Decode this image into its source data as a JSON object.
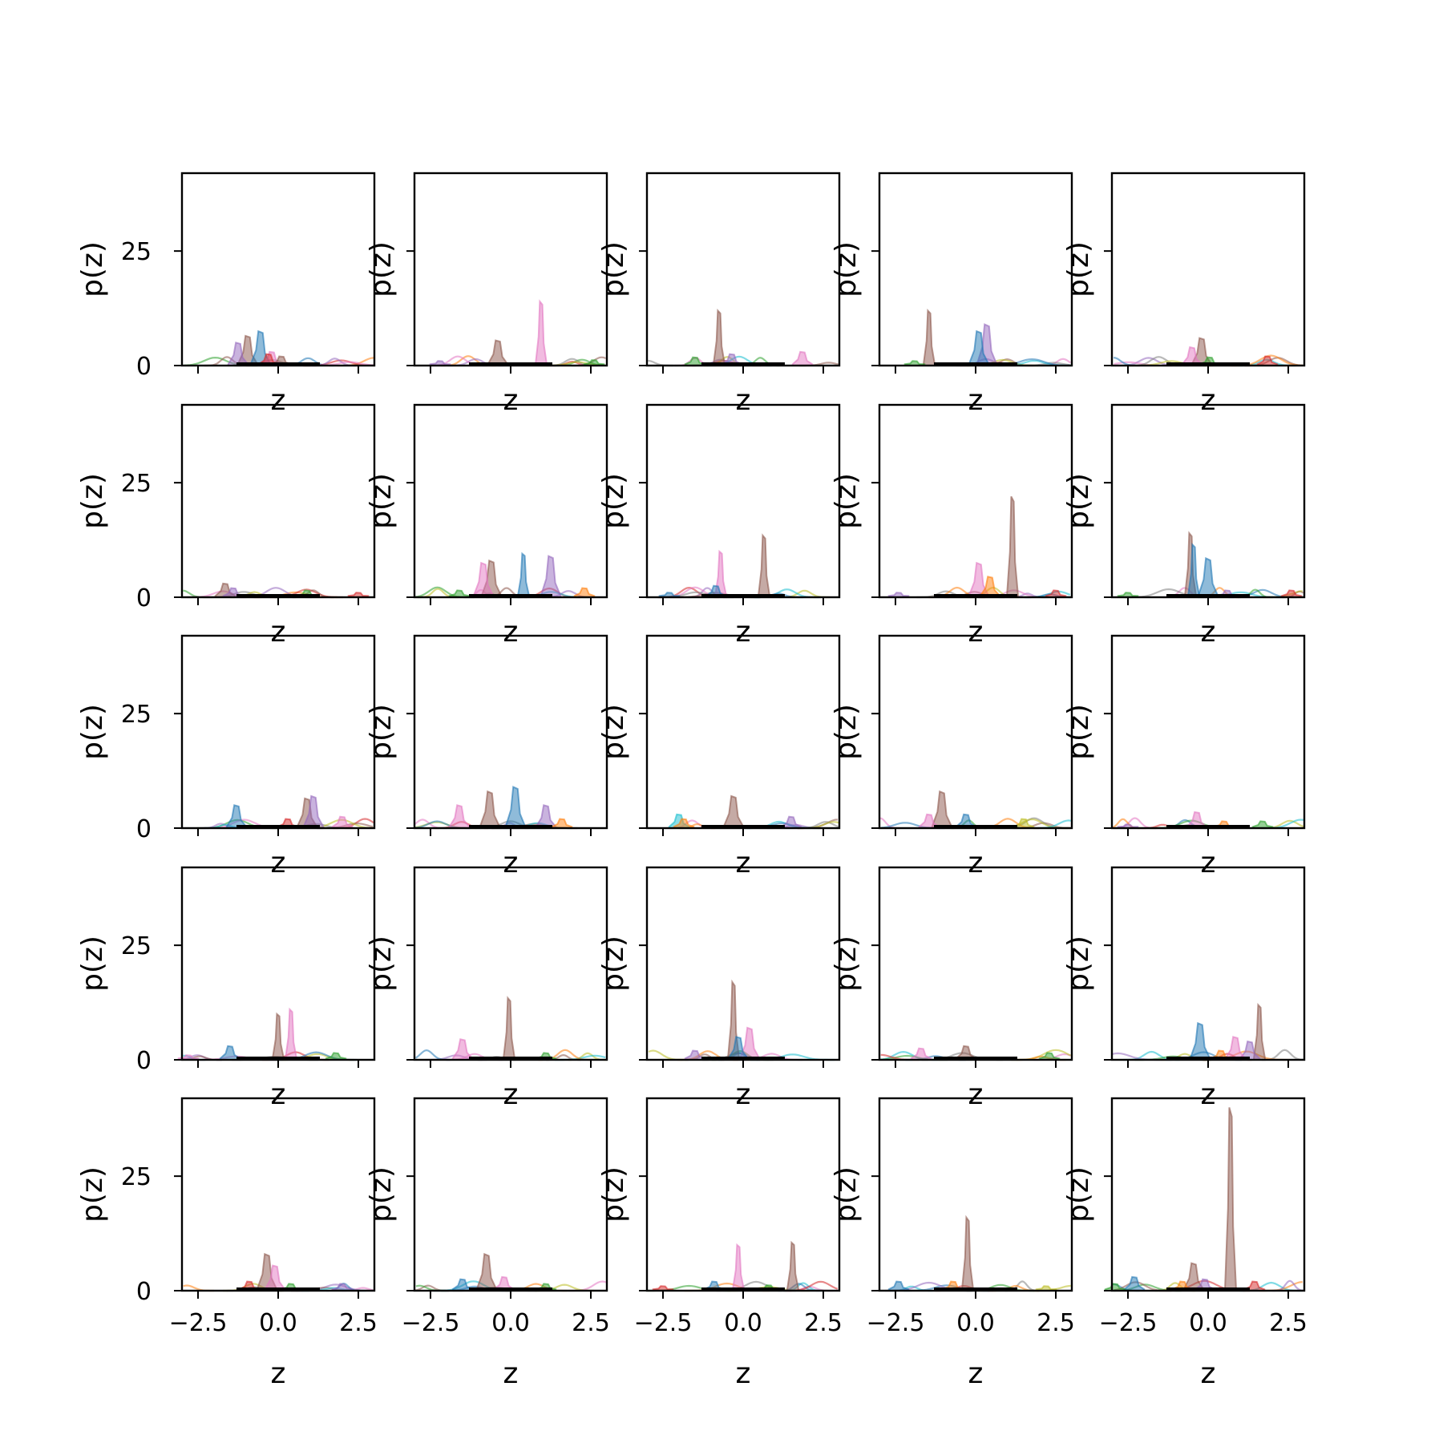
{
  "figure": {
    "grid_rows": 5,
    "grid_cols": 5
  },
  "chart_data": {
    "type": "area",
    "xlabel": "z",
    "ylabel": "p(z)",
    "xlim": [
      -3.0,
      3.0
    ],
    "ylim": [
      0,
      42
    ],
    "xticks": [
      -2.5,
      0.0,
      2.5
    ],
    "xtick_labels": [
      "−2.5",
      "0.0",
      "2.5"
    ],
    "yticks": [
      0,
      25
    ],
    "ytick_labels": [
      "0",
      "25"
    ],
    "grid": false,
    "legend": "none",
    "palette": [
      "#1f77b4",
      "#ff7f0e",
      "#2ca02c",
      "#d62728",
      "#9467bd",
      "#8c564b",
      "#e377c2",
      "#7f7f7f",
      "#bcbd22",
      "#17becf"
    ],
    "panels": [
      [
        {
          "peaks": [
            {
              "c": 5,
              "x": -0.95,
              "h": 6.5
            },
            {
              "c": 0,
              "x": -0.55,
              "h": 7.5
            },
            {
              "c": 4,
              "x": -1.25,
              "h": 5.0
            },
            {
              "c": 6,
              "x": -0.2,
              "h": 3.0
            },
            {
              "c": 3,
              "x": -0.3,
              "h": 2.5
            },
            {
              "c": 5,
              "x": 0.1,
              "h": 2.0
            }
          ]
        },
        {
          "peaks": [
            {
              "c": 6,
              "x": 0.95,
              "h": 14.0
            },
            {
              "c": 5,
              "x": -0.4,
              "h": 5.5
            },
            {
              "c": 2,
              "x": 2.6,
              "h": 1.2
            },
            {
              "c": 4,
              "x": -2.2,
              "h": 1.0
            }
          ]
        },
        {
          "peaks": [
            {
              "c": 5,
              "x": -0.75,
              "h": 12.0
            },
            {
              "c": 6,
              "x": 1.85,
              "h": 3.0
            },
            {
              "c": 2,
              "x": -1.5,
              "h": 1.8
            },
            {
              "c": 4,
              "x": -0.35,
              "h": 2.5
            }
          ]
        },
        {
          "peaks": [
            {
              "c": 5,
              "x": -1.45,
              "h": 12.0
            },
            {
              "c": 4,
              "x": 0.35,
              "h": 9.0
            },
            {
              "c": 0,
              "x": 0.1,
              "h": 7.5
            },
            {
              "c": 2,
              "x": -1.9,
              "h": 1.0
            }
          ]
        },
        {
          "peaks": [
            {
              "c": 5,
              "x": -0.2,
              "h": 6.0
            },
            {
              "c": 6,
              "x": -0.5,
              "h": 4.0
            },
            {
              "c": 3,
              "x": 1.85,
              "h": 2.0
            },
            {
              "c": 2,
              "x": 0.05,
              "h": 1.8
            }
          ]
        }
      ],
      [
        {
          "peaks": [
            {
              "c": 5,
              "x": -1.65,
              "h": 3.0
            },
            {
              "c": 4,
              "x": -1.4,
              "h": 2.0
            },
            {
              "c": 2,
              "x": 0.9,
              "h": 1.5
            },
            {
              "c": 3,
              "x": 2.5,
              "h": 1.0
            }
          ]
        },
        {
          "peaks": [
            {
              "c": 0,
              "x": 0.4,
              "h": 9.5
            },
            {
              "c": 4,
              "x": 1.25,
              "h": 9.0
            },
            {
              "c": 5,
              "x": -0.6,
              "h": 8.0
            },
            {
              "c": 6,
              "x": -0.85,
              "h": 7.5
            },
            {
              "c": 2,
              "x": -1.6,
              "h": 1.5
            },
            {
              "c": 1,
              "x": 2.3,
              "h": 2.0
            }
          ]
        },
        {
          "peaks": [
            {
              "c": 5,
              "x": 0.65,
              "h": 13.5
            },
            {
              "c": 6,
              "x": -0.7,
              "h": 10.0
            },
            {
              "c": 0,
              "x": -0.85,
              "h": 2.5
            },
            {
              "c": 0,
              "x": -2.3,
              "h": 1.0
            }
          ]
        },
        {
          "peaks": [
            {
              "c": 5,
              "x": 1.15,
              "h": 22.0
            },
            {
              "c": 6,
              "x": 0.1,
              "h": 7.5
            },
            {
              "c": 1,
              "x": 0.45,
              "h": 4.5
            },
            {
              "c": 3,
              "x": 2.5,
              "h": 1.5
            },
            {
              "c": 4,
              "x": -2.4,
              "h": 1.0
            }
          ]
        },
        {
          "peaks": [
            {
              "c": 5,
              "x": -0.55,
              "h": 14.0
            },
            {
              "c": 0,
              "x": -0.45,
              "h": 11.5
            },
            {
              "c": 0,
              "x": 0.0,
              "h": 8.5
            },
            {
              "c": 3,
              "x": 2.6,
              "h": 1.5
            },
            {
              "c": 2,
              "x": -2.5,
              "h": 1.0
            },
            {
              "c": 4,
              "x": 0.6,
              "h": 1.5
            }
          ]
        }
      ],
      [
        {
          "peaks": [
            {
              "c": 0,
              "x": -1.3,
              "h": 5.0
            },
            {
              "c": 5,
              "x": 0.9,
              "h": 6.5
            },
            {
              "c": 4,
              "x": 1.1,
              "h": 7.0
            },
            {
              "c": 6,
              "x": 2.0,
              "h": 2.5
            },
            {
              "c": 3,
              "x": 0.3,
              "h": 2.0
            }
          ]
        },
        {
          "peaks": [
            {
              "c": 0,
              "x": 0.15,
              "h": 9.0
            },
            {
              "c": 5,
              "x": -0.65,
              "h": 8.0
            },
            {
              "c": 6,
              "x": -1.6,
              "h": 5.0
            },
            {
              "c": 4,
              "x": 1.1,
              "h": 5.0
            },
            {
              "c": 1,
              "x": 1.6,
              "h": 2.0
            }
          ]
        },
        {
          "peaks": [
            {
              "c": 5,
              "x": -0.3,
              "h": 7.0
            },
            {
              "c": 9,
              "x": -2.0,
              "h": 3.0
            },
            {
              "c": 1,
              "x": -1.85,
              "h": 2.0
            },
            {
              "c": 4,
              "x": 1.5,
              "h": 2.5
            }
          ]
        },
        {
          "peaks": [
            {
              "c": 5,
              "x": -1.05,
              "h": 8.0
            },
            {
              "c": 6,
              "x": -1.45,
              "h": 3.0
            },
            {
              "c": 0,
              "x": -0.3,
              "h": 3.0
            },
            {
              "c": 8,
              "x": 1.5,
              "h": 2.0
            }
          ]
        },
        {
          "peaks": [
            {
              "c": 6,
              "x": -0.35,
              "h": 3.5
            },
            {
              "c": 1,
              "x": 0.5,
              "h": 1.5
            },
            {
              "c": 2,
              "x": 1.7,
              "h": 1.5
            },
            {
              "c": 4,
              "x": -2.5,
              "h": 0.8
            }
          ]
        }
      ],
      [
        {
          "peaks": [
            {
              "c": 5,
              "x": 0.0,
              "h": 10.0
            },
            {
              "c": 6,
              "x": 0.4,
              "h": 11.0
            },
            {
              "c": 0,
              "x": -1.5,
              "h": 3.0
            },
            {
              "c": 2,
              "x": 1.8,
              "h": 1.5
            },
            {
              "c": 6,
              "x": -2.8,
              "h": 1.0
            }
          ]
        },
        {
          "peaks": [
            {
              "c": 5,
              "x": -0.05,
              "h": 13.5
            },
            {
              "c": 6,
              "x": -1.5,
              "h": 4.5
            },
            {
              "c": 2,
              "x": 1.1,
              "h": 1.5
            }
          ]
        },
        {
          "peaks": [
            {
              "c": 5,
              "x": -0.3,
              "h": 17.0
            },
            {
              "c": 6,
              "x": 0.2,
              "h": 7.0
            },
            {
              "c": 0,
              "x": -0.15,
              "h": 5.0
            },
            {
              "c": 4,
              "x": -1.5,
              "h": 2.0
            }
          ]
        },
        {
          "peaks": [
            {
              "c": 5,
              "x": -0.3,
              "h": 3.0
            },
            {
              "c": 6,
              "x": -1.7,
              "h": 2.5
            },
            {
              "c": 2,
              "x": 2.3,
              "h": 1.5
            }
          ]
        },
        {
          "peaks": [
            {
              "c": 5,
              "x": 1.6,
              "h": 12.0
            },
            {
              "c": 0,
              "x": -0.25,
              "h": 8.0
            },
            {
              "c": 4,
              "x": 1.3,
              "h": 4.0
            },
            {
              "c": 6,
              "x": 0.85,
              "h": 5.0
            },
            {
              "c": 1,
              "x": 0.4,
              "h": 2.0
            }
          ]
        }
      ],
      [
        {
          "peaks": [
            {
              "c": 5,
              "x": -0.35,
              "h": 8.0
            },
            {
              "c": 6,
              "x": -0.1,
              "h": 5.5
            },
            {
              "c": 3,
              "x": -0.9,
              "h": 2.0
            },
            {
              "c": 2,
              "x": 0.4,
              "h": 1.5
            },
            {
              "c": 4,
              "x": 2.0,
              "h": 1.5
            }
          ]
        },
        {
          "peaks": [
            {
              "c": 5,
              "x": -0.75,
              "h": 8.0
            },
            {
              "c": 0,
              "x": -1.5,
              "h": 2.5
            },
            {
              "c": 6,
              "x": -0.2,
              "h": 3.0
            },
            {
              "c": 2,
              "x": 1.1,
              "h": 1.5
            }
          ]
        },
        {
          "peaks": [
            {
              "c": 6,
              "x": -0.15,
              "h": 10.0
            },
            {
              "c": 5,
              "x": 1.55,
              "h": 10.5
            },
            {
              "c": 0,
              "x": -0.9,
              "h": 2.0
            },
            {
              "c": 3,
              "x": -2.5,
              "h": 1.0
            },
            {
              "c": 2,
              "x": 0.8,
              "h": 1.2
            }
          ]
        },
        {
          "peaks": [
            {
              "c": 5,
              "x": -0.25,
              "h": 16.0
            },
            {
              "c": 0,
              "x": -2.4,
              "h": 2.0
            },
            {
              "c": 1,
              "x": -0.7,
              "h": 2.0
            },
            {
              "c": 8,
              "x": 2.2,
              "h": 1.0
            }
          ]
        },
        {
          "peaks": [
            {
              "c": 5,
              "x": 0.7,
              "h": 40.0
            },
            {
              "c": 5,
              "x": -0.45,
              "h": 6.0
            },
            {
              "c": 0,
              "x": -2.3,
              "h": 3.0
            },
            {
              "c": 2,
              "x": -2.9,
              "h": 1.5
            },
            {
              "c": 1,
              "x": -0.8,
              "h": 2.0
            },
            {
              "c": 3,
              "x": 1.45,
              "h": 2.0
            },
            {
              "c": 4,
              "x": -0.1,
              "h": 2.5
            }
          ]
        }
      ]
    ]
  }
}
